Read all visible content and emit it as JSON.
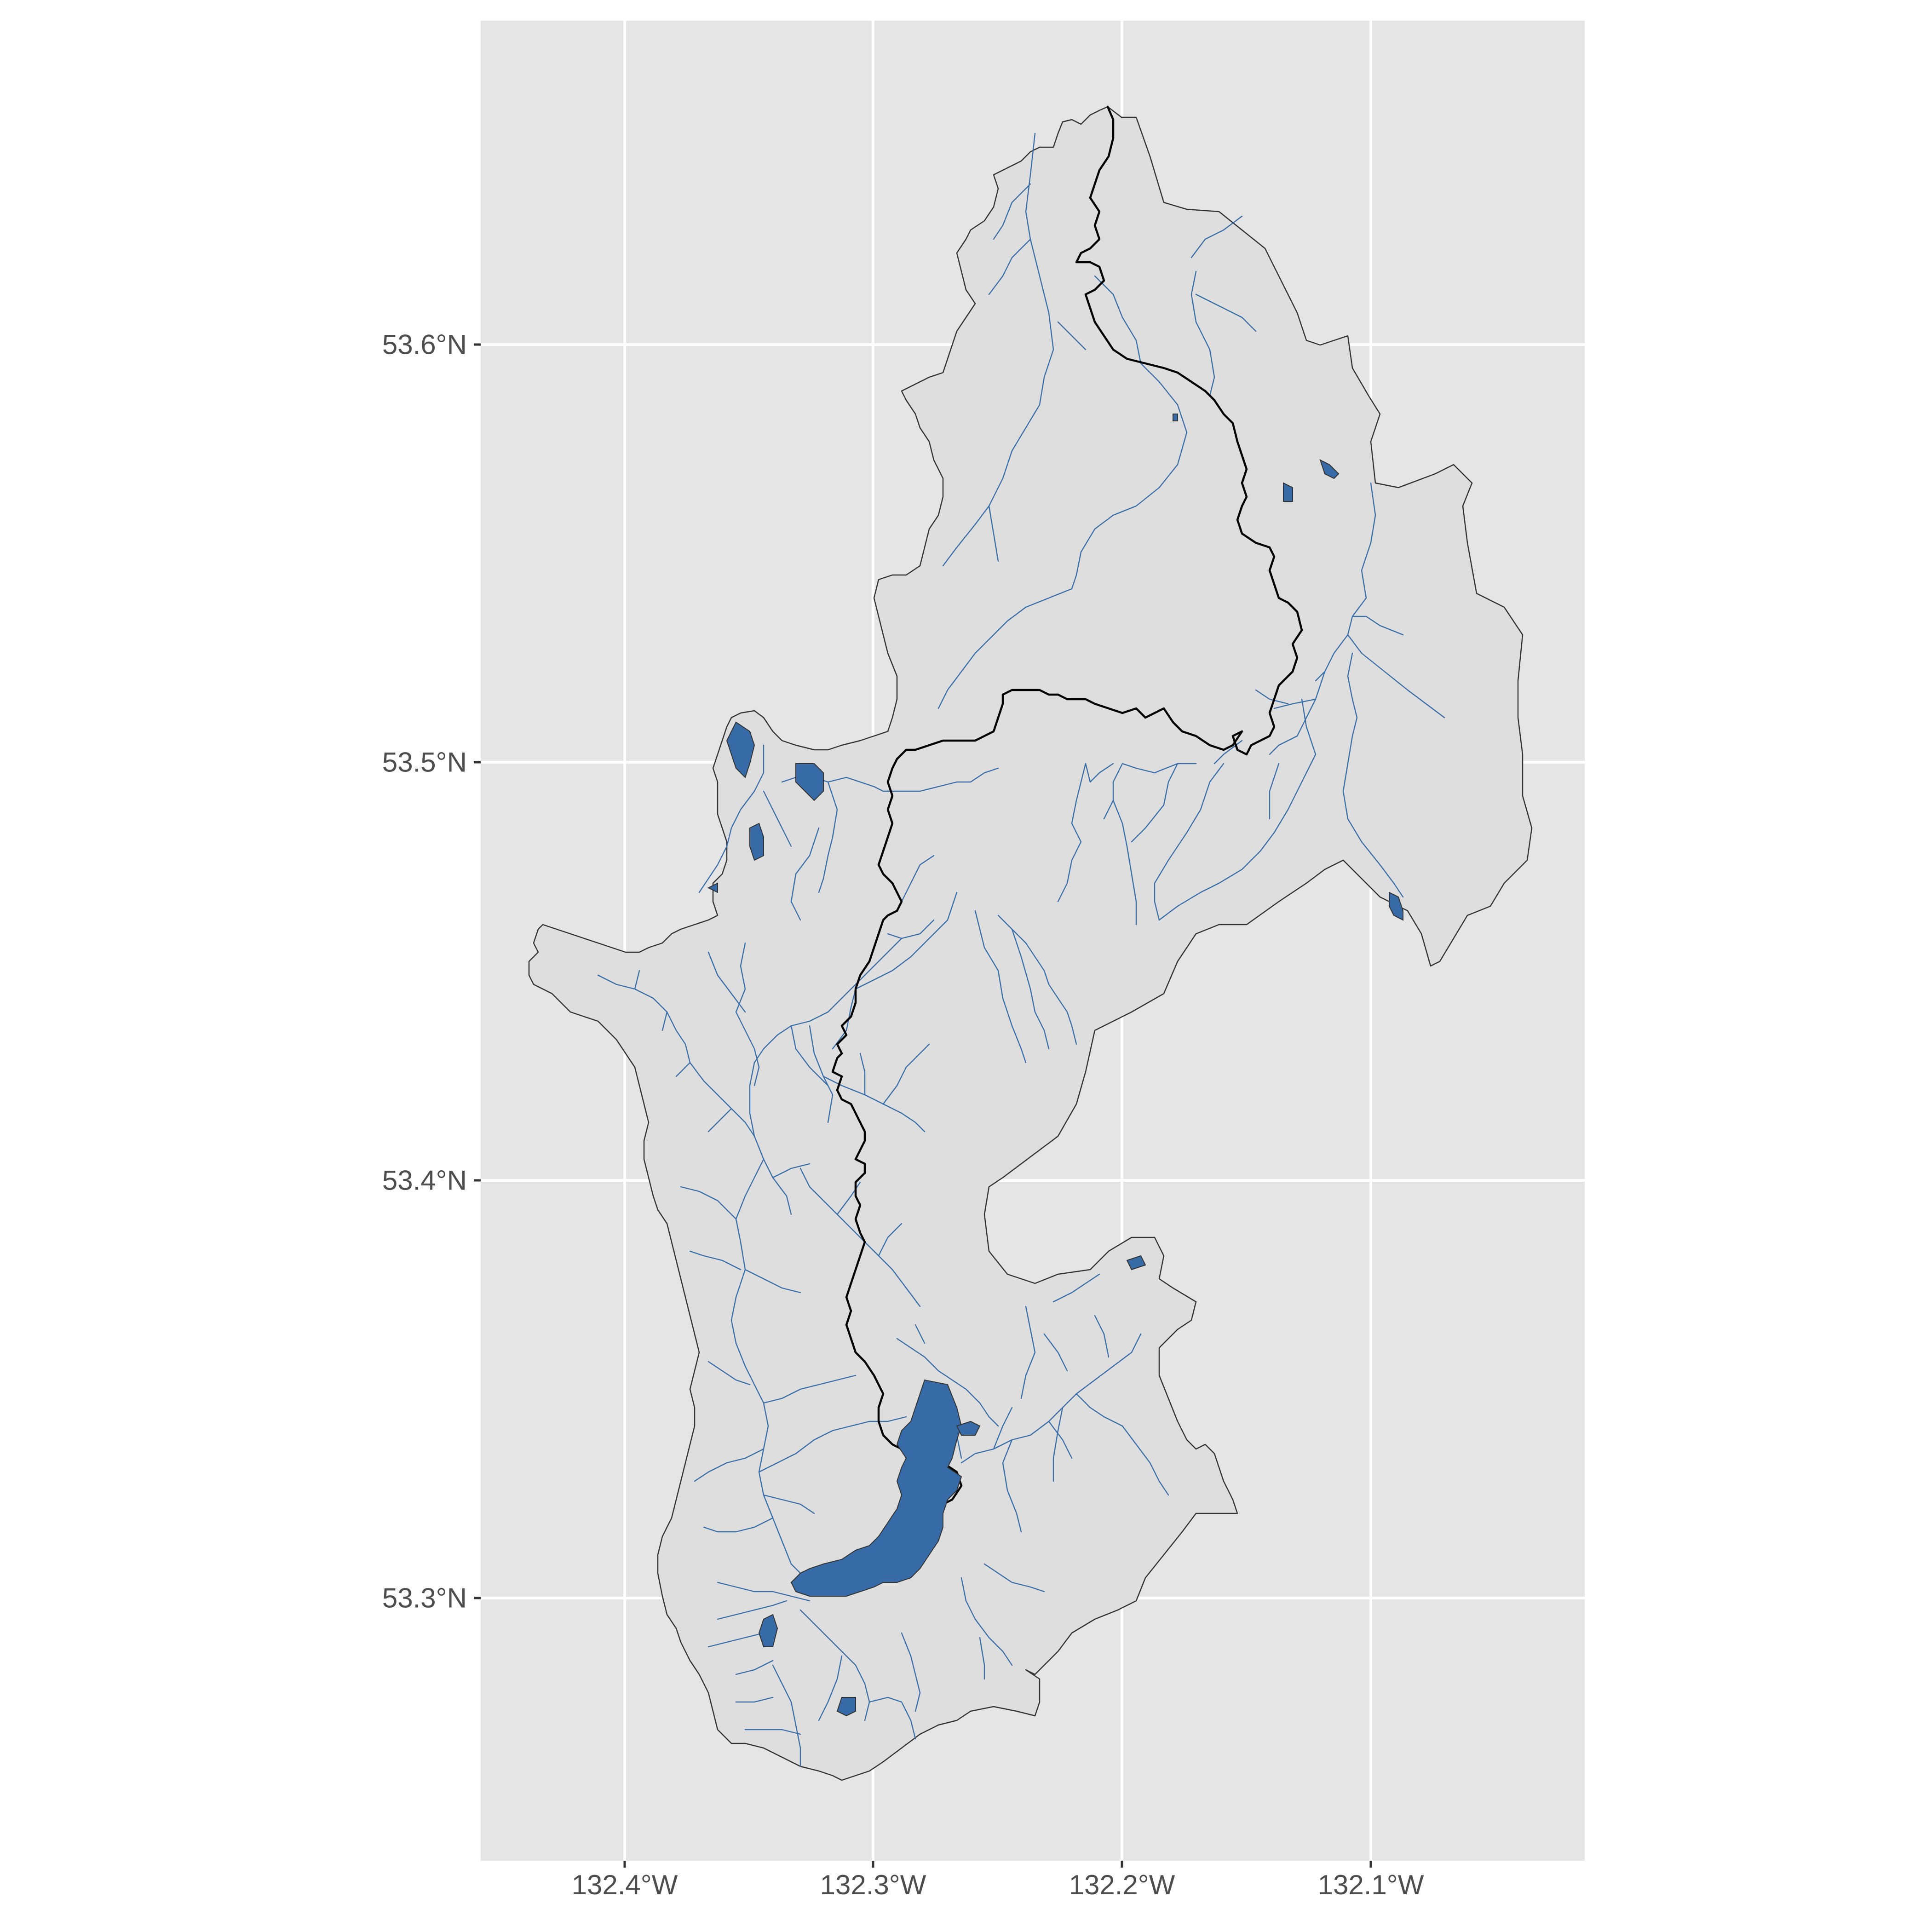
{
  "colors": {
    "panel_background": "#e5e5e5",
    "grid": "#ffffff",
    "watershed_fill": "#dedede",
    "watershed_outline": "#333333",
    "stream": "#3a6ea8",
    "mainstem": "#000000",
    "lake_fill": "#366ba7",
    "axis_text": "#4d4d4d"
  },
  "axes": {
    "y_labels": [
      "53.6°N",
      "53.5°N",
      "53.4°N",
      "53.3°N"
    ],
    "x_labels": [
      "132.4°W",
      "132.3°W",
      "132.2°W",
      "132.1°W"
    ]
  },
  "map_layers": {
    "watershed": "watershed-boundary",
    "streams": "stream-network",
    "mainstem": "main-river",
    "lakes": "lakes"
  }
}
